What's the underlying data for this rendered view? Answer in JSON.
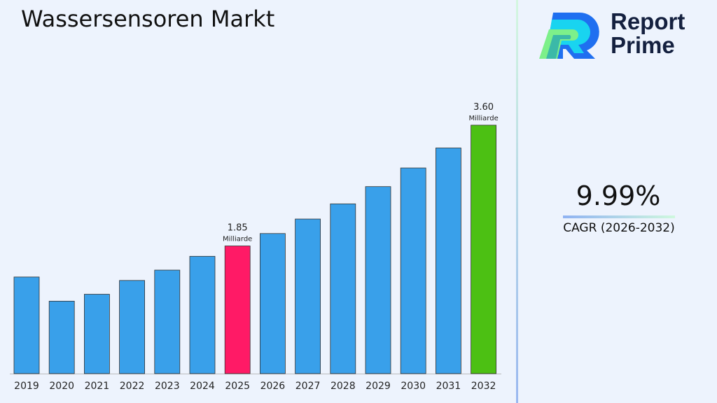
{
  "title": "Wassersensoren Markt",
  "logo": {
    "line1": "Report",
    "line2": "Prime"
  },
  "cagr": {
    "value": "9.99%",
    "label": "CAGR (2026-2032)"
  },
  "chart_data": {
    "type": "bar",
    "categories": [
      "2019",
      "2020",
      "2021",
      "2022",
      "2023",
      "2024",
      "2025",
      "2026",
      "2027",
      "2028",
      "2029",
      "2030",
      "2031",
      "2032"
    ],
    "values": [
      1.4,
      1.05,
      1.15,
      1.35,
      1.5,
      1.7,
      1.85,
      2.03,
      2.24,
      2.46,
      2.71,
      2.98,
      3.27,
      3.6
    ],
    "highlight": {
      "2025": "#ff1a66",
      "2032": "#4cc013"
    },
    "bar_color": "#39a0ea",
    "data_labels": [
      {
        "category": "2025",
        "value": "1.85",
        "unit": "Milliarde"
      },
      {
        "category": "2032",
        "value": "3.60",
        "unit": "Milliarde"
      }
    ],
    "ylim": [
      0,
      4.4
    ],
    "grid": false,
    "xlabel": "",
    "ylabel": ""
  }
}
